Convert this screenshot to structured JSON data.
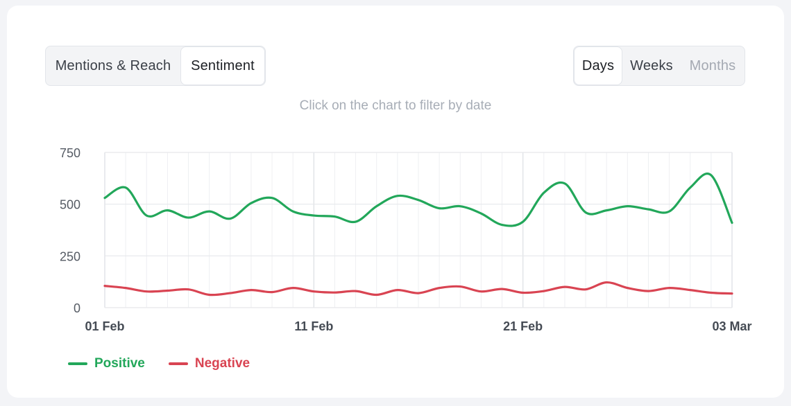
{
  "tabs": [
    {
      "label": "Mentions & Reach",
      "active": false
    },
    {
      "label": "Sentiment",
      "active": true
    }
  ],
  "periods": [
    {
      "label": "Days",
      "active": true,
      "disabled": false
    },
    {
      "label": "Weeks",
      "active": false,
      "disabled": false
    },
    {
      "label": "Months",
      "active": false,
      "disabled": true
    }
  ],
  "hint": "Click on the chart to filter by date",
  "chart_data": {
    "type": "line",
    "x": [
      "01 Feb",
      "02 Feb",
      "03 Feb",
      "04 Feb",
      "05 Feb",
      "06 Feb",
      "07 Feb",
      "08 Feb",
      "09 Feb",
      "10 Feb",
      "11 Feb",
      "12 Feb",
      "13 Feb",
      "14 Feb",
      "15 Feb",
      "16 Feb",
      "17 Feb",
      "18 Feb",
      "19 Feb",
      "20 Feb",
      "21 Feb",
      "22 Feb",
      "23 Feb",
      "24 Feb",
      "25 Feb",
      "26 Feb",
      "27 Feb",
      "28 Feb",
      "01 Mar",
      "02 Mar",
      "03 Mar"
    ],
    "x_tick_labels": [
      "01 Feb",
      "11 Feb",
      "21 Feb",
      "03 Mar"
    ],
    "x_tick_index": [
      0,
      10,
      20,
      30
    ],
    "y_ticks": [
      0,
      250,
      500,
      750
    ],
    "ylim": [
      0,
      750
    ],
    "grid": true,
    "legend_position": "bottom-left",
    "series": [
      {
        "name": "Positive",
        "color": "#22a75a",
        "values": [
          530,
          580,
          445,
          470,
          435,
          465,
          430,
          505,
          530,
          465,
          445,
          440,
          415,
          490,
          540,
          520,
          480,
          490,
          455,
          400,
          415,
          555,
          600,
          460,
          470,
          490,
          475,
          465,
          580,
          640,
          410
        ]
      },
      {
        "name": "Negative",
        "color": "#d94452",
        "values": [
          105,
          95,
          78,
          82,
          88,
          62,
          70,
          85,
          75,
          95,
          78,
          73,
          80,
          62,
          85,
          70,
          95,
          102,
          78,
          90,
          72,
          80,
          100,
          88,
          122,
          95,
          80,
          95,
          85,
          72,
          68
        ]
      }
    ]
  }
}
